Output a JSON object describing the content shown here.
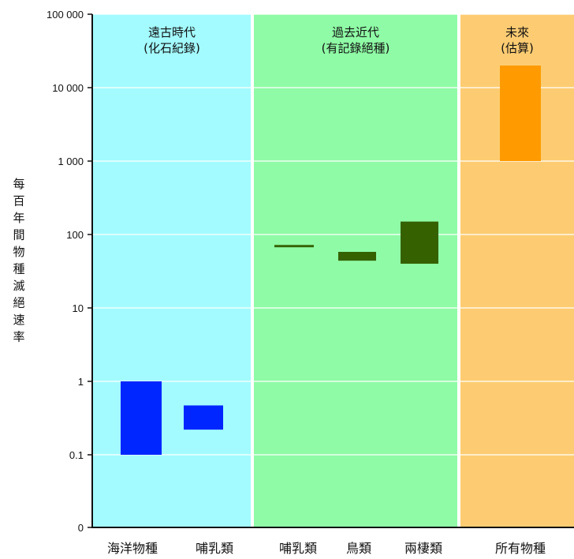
{
  "chart_data": {
    "type": "bar",
    "y_scale": "log",
    "ylabel": "每百年間物種滅絕速率",
    "y_ticks": [
      {
        "value": 0,
        "label": "0"
      },
      {
        "value": 0.1,
        "label": "0.1"
      },
      {
        "value": 1,
        "label": "1"
      },
      {
        "value": 10,
        "label": "10"
      },
      {
        "value": 100,
        "label": "100"
      },
      {
        "value": 1000,
        "label": "1 000"
      },
      {
        "value": 10000,
        "label": "10 000"
      },
      {
        "value": 100000,
        "label": "100 000"
      }
    ],
    "ylim": [
      0,
      100000
    ],
    "grid": true,
    "eras": [
      {
        "line1": "遠古時代",
        "line2": "(化石紀錄)",
        "color": "#a3fbff"
      },
      {
        "line1": "過去近代",
        "line2": "(有記錄絕種)",
        "color": "#8ffba6"
      },
      {
        "line1": "未來",
        "line2": "(估算)",
        "color": "#fdcc72"
      }
    ],
    "bars": [
      {
        "era": 0,
        "category": "海洋物種",
        "low": 0.1,
        "high": 1,
        "color": "#0026ff"
      },
      {
        "era": 0,
        "category": "哺乳類",
        "low": 0.22,
        "high": 0.47,
        "color": "#0026ff"
      },
      {
        "era": 1,
        "category": "哺乳類",
        "low": 67,
        "high": 72,
        "color": "#356100"
      },
      {
        "era": 1,
        "category": "鳥類",
        "low": 44,
        "high": 58,
        "color": "#356100"
      },
      {
        "era": 1,
        "category": "兩棲類",
        "low": 40,
        "high": 150,
        "color": "#356100"
      },
      {
        "era": 2,
        "category": "所有物種",
        "low": 1000,
        "high": 20000,
        "color": "#ff9b00"
      }
    ]
  }
}
